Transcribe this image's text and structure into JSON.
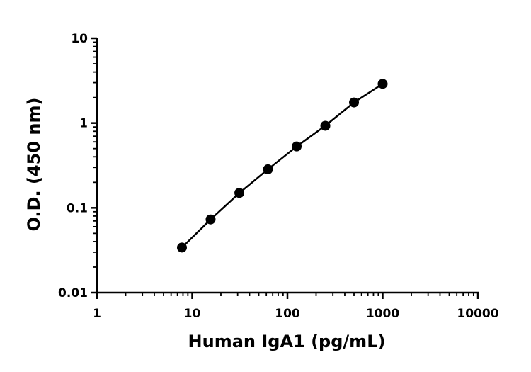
{
  "chart_data": {
    "type": "scatter",
    "title": "",
    "xlabel": "Human IgA1 (pg/mL)",
    "ylabel": "O.D. (450 nm)",
    "xscale": "log",
    "yscale": "log",
    "xlim": [
      1,
      10000
    ],
    "ylim": [
      0.01,
      10
    ],
    "xticks": [
      1,
      10,
      100,
      1000,
      10000
    ],
    "xtick_labels": [
      "1",
      "10",
      "100",
      "1000",
      "10000"
    ],
    "yticks": [
      0.01,
      0.1,
      1,
      10
    ],
    "ytick_labels": [
      "0.01",
      "0.1",
      "1",
      "10"
    ],
    "grid": false,
    "legend": "none",
    "series": [
      {
        "x": [
          7.8,
          15.6,
          31.25,
          62.5,
          125,
          250,
          500,
          1000
        ],
        "y": [
          0.034,
          0.073,
          0.15,
          0.285,
          0.53,
          0.93,
          1.75,
          2.9
        ],
        "marker_color": "#000000",
        "line_color": "#000000",
        "connected": true
      }
    ]
  }
}
